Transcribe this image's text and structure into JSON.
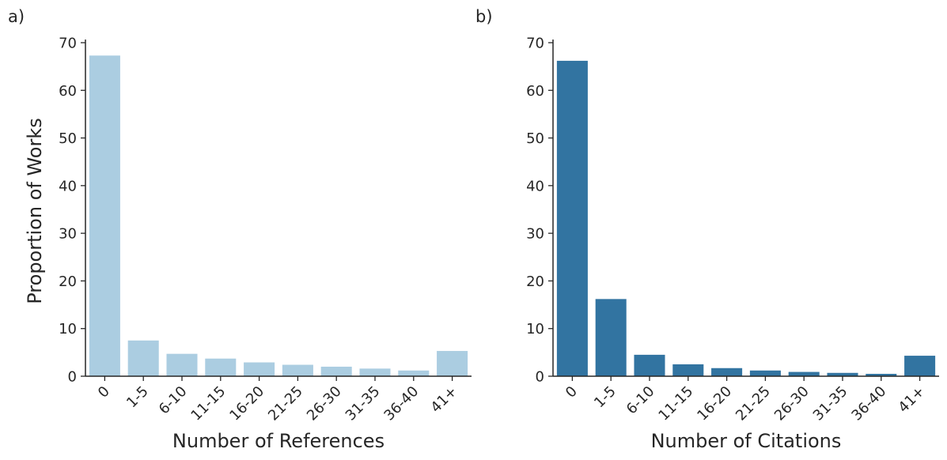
{
  "chart_data": [
    {
      "type": "bar",
      "panel_label": "a)",
      "title": "",
      "xlabel": "Number of References",
      "ylabel": "Proportion of Works",
      "categories": [
        "0",
        "1-5",
        "6-10",
        "11-15",
        "16-20",
        "21-25",
        "26-30",
        "31-35",
        "36-40",
        "41+"
      ],
      "values": [
        67.3,
        7.5,
        4.7,
        3.7,
        2.9,
        2.4,
        2.0,
        1.6,
        1.2,
        5.3
      ],
      "ylim": [
        0,
        70
      ],
      "yticks": [
        0,
        10,
        20,
        30,
        40,
        50,
        60,
        70
      ],
      "color": "#abcde1",
      "grid": false
    },
    {
      "type": "bar",
      "panel_label": "b)",
      "title": "",
      "xlabel": "Number of Citations",
      "ylabel": "",
      "categories": [
        "0",
        "1-5",
        "6-10",
        "11-15",
        "16-20",
        "21-25",
        "26-30",
        "31-35",
        "36-40",
        "41+"
      ],
      "values": [
        66.2,
        16.2,
        4.5,
        2.5,
        1.7,
        1.2,
        0.9,
        0.7,
        0.5,
        4.3
      ],
      "ylim": [
        0,
        70
      ],
      "yticks": [
        0,
        10,
        20,
        30,
        40,
        50,
        60,
        70
      ],
      "color": "#3274a1",
      "grid": false
    }
  ]
}
